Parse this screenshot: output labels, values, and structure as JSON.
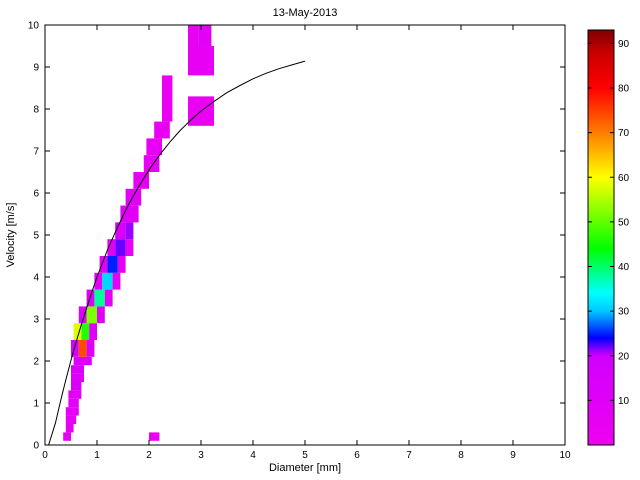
{
  "title": "13-May-2013",
  "chart_data": {
    "type": "heatmap",
    "title": "13-May-2013",
    "xlabel": "Diameter [mm]",
    "ylabel": "Velocity [m/s]",
    "xlim": [
      0,
      10
    ],
    "ylim": [
      0,
      10
    ],
    "grid": false,
    "xticks": [
      0,
      1,
      2,
      3,
      4,
      5,
      6,
      7,
      8,
      9,
      10
    ],
    "yticks": [
      0,
      1,
      2,
      3,
      4,
      5,
      6,
      7,
      8,
      9,
      10
    ],
    "colorbar": {
      "min": 0,
      "max": 93,
      "ticks": [
        10,
        20,
        30,
        40,
        50,
        60,
        70,
        80,
        90
      ],
      "position": "right"
    },
    "colormap": [
      [
        0,
        "#f000f0"
      ],
      [
        20,
        "#d000ff"
      ],
      [
        24,
        "#0000ff"
      ],
      [
        30,
        "#00c8ff"
      ],
      [
        34,
        "#00ffff"
      ],
      [
        44,
        "#00ff00"
      ],
      [
        52,
        "#80ff00"
      ],
      [
        60,
        "#ffff00"
      ],
      [
        68,
        "#ff9600"
      ],
      [
        72,
        "#ff6400"
      ],
      [
        80,
        "#ff0000"
      ],
      [
        88,
        "#c80000"
      ],
      [
        93,
        "#800000"
      ]
    ],
    "cells": [
      [
        0.35,
        0.5,
        0.1,
        0.3,
        4
      ],
      [
        0.4,
        0.55,
        0.3,
        0.5,
        5
      ],
      [
        0.4,
        0.6,
        0.5,
        0.7,
        6
      ],
      [
        0.4,
        0.65,
        0.7,
        0.9,
        7
      ],
      [
        0.45,
        0.65,
        0.9,
        1.1,
        8
      ],
      [
        0.45,
        0.7,
        1.1,
        1.3,
        9
      ],
      [
        0.5,
        0.7,
        1.3,
        1.5,
        14
      ],
      [
        0.5,
        0.75,
        1.5,
        1.7,
        11
      ],
      [
        0.5,
        0.75,
        1.7,
        1.9,
        13
      ],
      [
        0.55,
        0.9,
        1.9,
        2.1,
        15
      ],
      [
        0.5,
        0.65,
        2.1,
        2.5,
        16
      ],
      [
        0.65,
        0.8,
        2.1,
        2.5,
        74
      ],
      [
        0.8,
        0.95,
        2.1,
        2.5,
        12
      ],
      [
        0.55,
        0.7,
        2.5,
        2.9,
        58
      ],
      [
        0.7,
        0.85,
        2.5,
        2.9,
        46
      ],
      [
        0.85,
        1.0,
        2.5,
        2.9,
        11
      ],
      [
        0.65,
        0.8,
        2.9,
        3.3,
        14
      ],
      [
        0.8,
        1.0,
        2.9,
        3.3,
        52
      ],
      [
        1.0,
        1.15,
        2.9,
        3.3,
        10
      ],
      [
        0.8,
        0.95,
        3.3,
        3.7,
        12
      ],
      [
        0.95,
        1.15,
        3.3,
        3.7,
        38
      ],
      [
        1.15,
        1.3,
        3.3,
        3.7,
        8
      ],
      [
        0.95,
        1.1,
        3.7,
        4.1,
        10
      ],
      [
        1.1,
        1.3,
        3.7,
        4.1,
        31
      ],
      [
        1.3,
        1.45,
        3.7,
        4.1,
        7
      ],
      [
        1.05,
        1.2,
        4.1,
        4.5,
        9
      ],
      [
        1.2,
        1.4,
        4.1,
        4.5,
        25
      ],
      [
        1.4,
        1.55,
        4.1,
        4.5,
        6
      ],
      [
        1.2,
        1.35,
        4.5,
        4.9,
        7
      ],
      [
        1.35,
        1.55,
        4.5,
        4.9,
        22
      ],
      [
        1.55,
        1.7,
        4.5,
        4.9,
        5
      ],
      [
        1.35,
        1.55,
        4.9,
        5.3,
        15
      ],
      [
        1.55,
        1.7,
        4.9,
        5.3,
        21
      ],
      [
        1.45,
        1.8,
        5.3,
        5.7,
        10
      ],
      [
        1.55,
        1.85,
        5.7,
        6.1,
        9
      ],
      [
        1.7,
        2.0,
        6.1,
        6.5,
        7
      ],
      [
        1.9,
        2.2,
        6.5,
        6.9,
        6
      ],
      [
        1.95,
        2.25,
        6.9,
        7.3,
        5
      ],
      [
        2.1,
        2.4,
        7.3,
        7.7,
        5
      ],
      [
        2.25,
        2.45,
        7.7,
        8.8,
        4
      ],
      [
        2.75,
        3.25,
        7.6,
        8.3,
        4
      ],
      [
        2.75,
        3.25,
        8.8,
        9.5,
        5
      ],
      [
        2.75,
        2.95,
        9.5,
        10,
        5
      ],
      [
        2.95,
        3.2,
        9.5,
        10,
        9
      ],
      [
        2.0,
        2.2,
        0.1,
        0.3,
        3
      ]
    ],
    "curve": {
      "name": "terminal-velocity-fit",
      "color": "#000000",
      "points": [
        [
          0.07,
          0
        ],
        [
          0.2,
          0.52
        ],
        [
          0.3,
          1.05
        ],
        [
          0.4,
          1.55
        ],
        [
          0.5,
          2.02
        ],
        [
          0.6,
          2.46
        ],
        [
          0.7,
          2.87
        ],
        [
          0.8,
          3.26
        ],
        [
          0.9,
          3.64
        ],
        [
          1.0,
          4.0
        ],
        [
          1.2,
          4.64
        ],
        [
          1.4,
          5.2
        ],
        [
          1.6,
          5.71
        ],
        [
          1.8,
          6.15
        ],
        [
          2.0,
          6.55
        ],
        [
          2.2,
          6.9
        ],
        [
          2.4,
          7.21
        ],
        [
          2.6,
          7.49
        ],
        [
          2.8,
          7.73
        ],
        [
          3.0,
          7.95
        ],
        [
          3.25,
          8.18
        ],
        [
          3.5,
          8.39
        ],
        [
          3.75,
          8.56
        ],
        [
          4.0,
          8.72
        ],
        [
          4.25,
          8.85
        ],
        [
          4.5,
          8.96
        ],
        [
          4.75,
          9.05
        ],
        [
          5.0,
          9.14
        ]
      ]
    }
  }
}
